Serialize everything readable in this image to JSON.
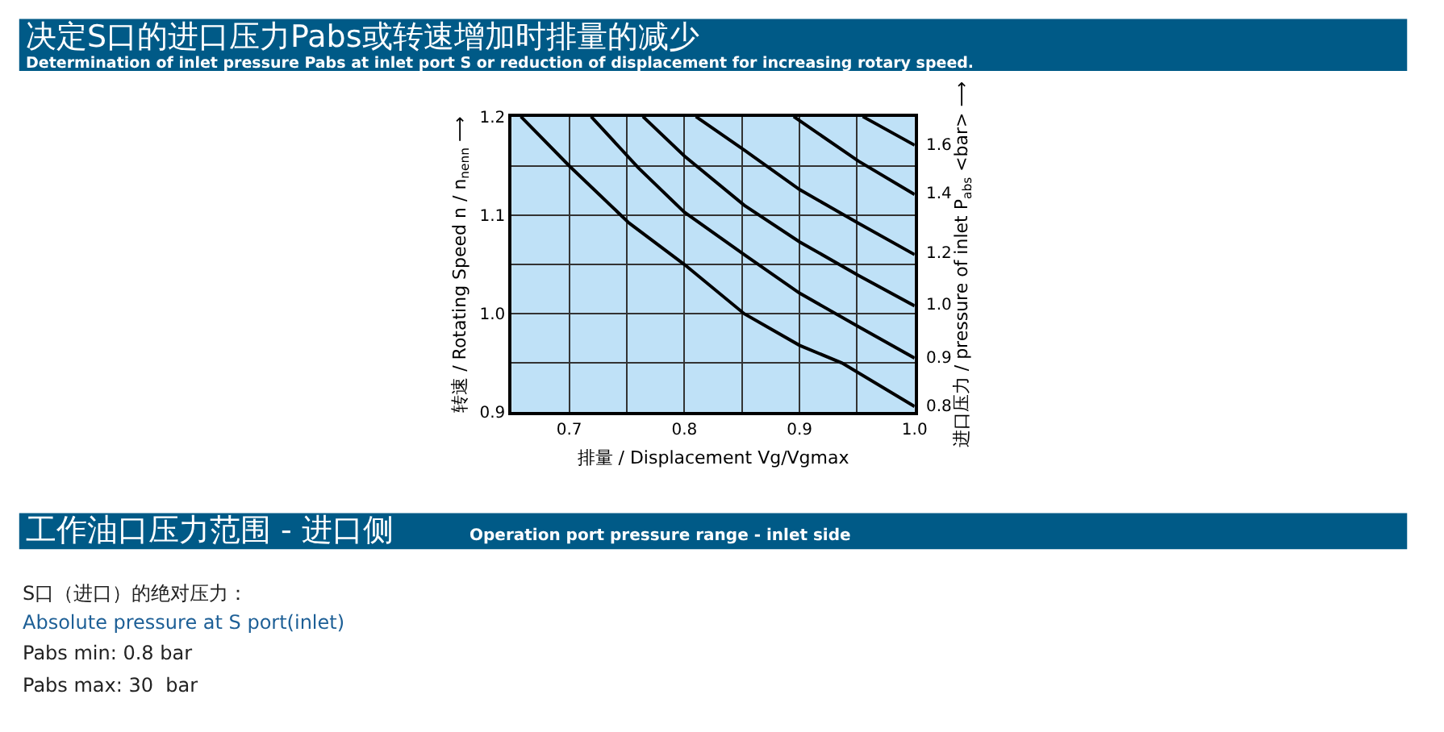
{
  "chart_data": {
    "type": "line",
    "title": "决定S口的进口压力Pabs或转速增加时排量的减少",
    "subtitle": "Determination of inlet pressure Pabs at inlet port S or reduction of displacement for increasing rotary speed.",
    "xlabel": "排量 / Displacement Vg/Vgmax",
    "ylabel": "转速 / Rotating Speed n / n$_{nenn}$ ⟶",
    "y2label": "进口压力 / pressure of inlet P$_{abs}$ <bar> ⟶",
    "annotations": [
      "工作油口压力范围 - 进口侧",
      "Operation port pressure range - inlet side",
      "S口（进口）的绝对压力：",
      "Absolute pressure at S port(inlet)",
      "Pabs min: 0.8 bar",
      "Pabs max: 30  bar"
    ],
    "xlim": [
      0.65,
      1.0
    ],
    "xticks": [
      0.7,
      {
        "value": 0.75,
        "label": null
      },
      0.8,
      {
        "value": 0.85,
        "label": null
      },
      0.9,
      {
        "value": 0.95,
        "label": null
      },
      {
        "value": 1.0,
        "label": "1.0"
      }
    ],
    "ylim": [
      0.9,
      1.2
    ],
    "yticks": [
      0.9,
      {
        "value": 0.95,
        "label": null
      },
      {
        "value": 1.0,
        "label": "1.0"
      },
      {
        "value": 1.05,
        "label": null
      },
      1.1,
      {
        "value": 1.15,
        "label": null
      },
      1.2
    ],
    "grid": true,
    "legend": false,
    "marker": "none",
    "line_style": "solid",
    "series": [
      {
        "name": "0.8",
        "color": "#000000",
        "x": [
          0.658,
          0.7,
          0.752,
          0.8,
          0.852,
          0.9,
          0.937,
          1.0
        ],
        "values": [
          1.2,
          1.15,
          1.092,
          1.05,
          1.0,
          0.968,
          0.95,
          0.906
        ]
      },
      {
        "name": "0.9",
        "color": "#000000",
        "x": [
          0.719,
          0.76,
          0.8,
          0.852,
          0.9,
          0.951,
          1.0
        ],
        "values": [
          1.2,
          1.148,
          1.103,
          1.06,
          1.021,
          0.987,
          0.955
        ]
      },
      {
        "name": "1.0",
        "color": "#000000",
        "x": [
          0.764,
          0.8,
          0.852,
          0.9,
          0.951,
          1.0
        ],
        "values": [
          1.2,
          1.16,
          1.11,
          1.073,
          1.039,
          1.008
        ]
      },
      {
        "name": "1.2",
        "color": "#000000",
        "x": [
          0.81,
          0.852,
          0.9,
          0.951,
          1.0
        ],
        "values": [
          1.2,
          1.166,
          1.126,
          1.092,
          1.06
        ]
      },
      {
        "name": "1.4",
        "color": "#000000",
        "x": [
          0.895,
          0.951,
          1.0
        ],
        "values": [
          1.2,
          1.155,
          1.121
        ]
      },
      {
        "name": "1.6",
        "color": "#000000",
        "x": [
          0.955,
          1.0
        ],
        "values": [
          1.2,
          1.171
        ]
      }
    ]
  }
}
